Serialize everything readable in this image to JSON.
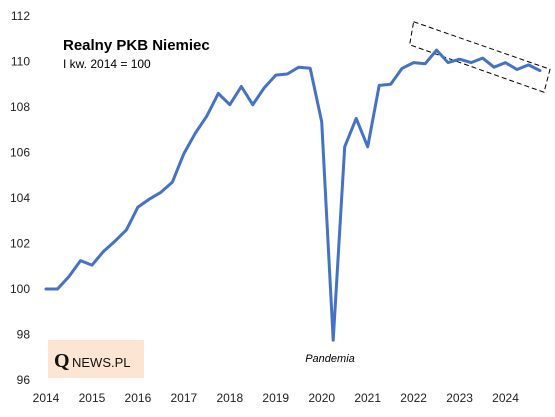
{
  "chart_data": {
    "type": "line",
    "title": "Realny PKB Niemiec",
    "subtitle": "I kw. 2014 = 100",
    "annotation": "Pandemia",
    "xlabel": "",
    "ylabel": "",
    "x_ticks": [
      "2014",
      "2015",
      "2016",
      "2017",
      "2018",
      "2019",
      "2020",
      "2021",
      "2022",
      "2023",
      "2024"
    ],
    "y_ticks": [
      96,
      98,
      100,
      102,
      104,
      106,
      108,
      110,
      112
    ],
    "ylim": [
      96,
      112
    ],
    "xlim": [
      2014.0,
      2024.75
    ],
    "grid": false,
    "legend": "none",
    "colors": {
      "line": "#4472c4",
      "highlight_box": "#000000",
      "logo_background": "#fde5d3"
    },
    "series": [
      {
        "x": [
          2014.0,
          2014.25,
          2014.5,
          2014.75,
          2015.0,
          2015.25,
          2015.5,
          2015.75,
          2016.0,
          2016.25,
          2016.5,
          2016.75,
          2017.0,
          2017.25,
          2017.5,
          2017.75,
          2018.0,
          2018.25,
          2018.5,
          2018.75,
          2019.0,
          2019.25,
          2019.5,
          2019.75,
          2020.0,
          2020.25,
          2020.5,
          2020.75,
          2021.0,
          2021.25,
          2021.5,
          2021.75,
          2022.0,
          2022.25,
          2022.5,
          2022.75,
          2023.0,
          2023.25,
          2023.5,
          2023.75,
          2024.0,
          2024.25,
          2024.5,
          2024.75
        ],
        "values": [
          100.0,
          100.0,
          100.55,
          101.25,
          101.05,
          101.65,
          102.1,
          102.6,
          103.6,
          103.95,
          104.25,
          104.7,
          105.95,
          106.85,
          107.6,
          108.6,
          108.1,
          108.9,
          108.1,
          108.85,
          109.4,
          109.45,
          109.75,
          109.7,
          107.35,
          97.75,
          106.25,
          107.5,
          106.25,
          108.95,
          109.0,
          109.7,
          109.95,
          109.9,
          110.5,
          109.95,
          110.1,
          109.95,
          110.15,
          109.75,
          109.95,
          109.65,
          109.85,
          109.6
        ]
      }
    ],
    "highlight": {
      "x_range": [
        2022.0,
        2024.75
      ],
      "y_range": [
        109.0,
        111.0
      ]
    }
  },
  "branding": {
    "logo_letter": "Q",
    "logo_text": "NEWS.PL"
  }
}
